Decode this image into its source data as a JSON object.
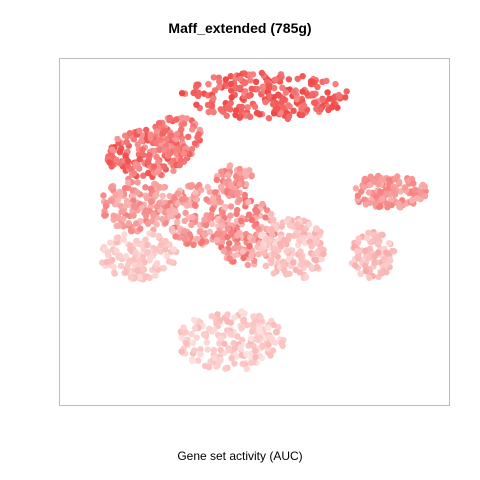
{
  "chart_data": {
    "type": "scatter",
    "title": "Maff_extended (785g)",
    "xlabel": "Gene set activity (AUC)",
    "ylabel": "",
    "axes_visible": false,
    "grid": false,
    "legend": "none",
    "color_scale": {
      "low": "#fde3e1",
      "high": "#f03c3c",
      "meaning": "Gene set activity (AUC)"
    },
    "regions": [
      {
        "name": "top-center",
        "cx": 0.53,
        "cy": 0.9,
        "rx": 0.22,
        "ry": 0.07,
        "n": 240,
        "level_range": [
          0.55,
          0.95
        ]
      },
      {
        "name": "top-left",
        "cx": 0.22,
        "cy": 0.73,
        "rx": 0.11,
        "ry": 0.07,
        "n": 160,
        "level_range": [
          0.45,
          0.9
        ]
      },
      {
        "name": "upper-left-mid",
        "cx": 0.3,
        "cy": 0.78,
        "rx": 0.07,
        "ry": 0.06,
        "n": 90,
        "level_range": [
          0.4,
          0.8
        ]
      },
      {
        "name": "left-middle",
        "cx": 0.2,
        "cy": 0.58,
        "rx": 0.1,
        "ry": 0.08,
        "n": 150,
        "level_range": [
          0.25,
          0.6
        ]
      },
      {
        "name": "left-lower",
        "cx": 0.2,
        "cy": 0.43,
        "rx": 0.1,
        "ry": 0.07,
        "n": 130,
        "level_range": [
          0.05,
          0.25
        ]
      },
      {
        "name": "center-left",
        "cx": 0.35,
        "cy": 0.55,
        "rx": 0.08,
        "ry": 0.09,
        "n": 140,
        "level_range": [
          0.2,
          0.65
        ]
      },
      {
        "name": "center",
        "cx": 0.48,
        "cy": 0.5,
        "rx": 0.08,
        "ry": 0.1,
        "n": 150,
        "level_range": [
          0.2,
          0.7
        ]
      },
      {
        "name": "center-right",
        "cx": 0.6,
        "cy": 0.45,
        "rx": 0.09,
        "ry": 0.09,
        "n": 170,
        "level_range": [
          0.05,
          0.3
        ]
      },
      {
        "name": "mid-upper",
        "cx": 0.45,
        "cy": 0.65,
        "rx": 0.05,
        "ry": 0.05,
        "n": 60,
        "level_range": [
          0.3,
          0.65
        ]
      },
      {
        "name": "right-upper",
        "cx": 0.85,
        "cy": 0.62,
        "rx": 0.1,
        "ry": 0.05,
        "n": 140,
        "level_range": [
          0.3,
          0.6
        ]
      },
      {
        "name": "right-lower",
        "cx": 0.81,
        "cy": 0.43,
        "rx": 0.06,
        "ry": 0.07,
        "n": 90,
        "level_range": [
          0.08,
          0.35
        ]
      },
      {
        "name": "bottom",
        "cx": 0.44,
        "cy": 0.18,
        "rx": 0.14,
        "ry": 0.09,
        "n": 190,
        "level_range": [
          0.0,
          0.25
        ]
      }
    ]
  }
}
